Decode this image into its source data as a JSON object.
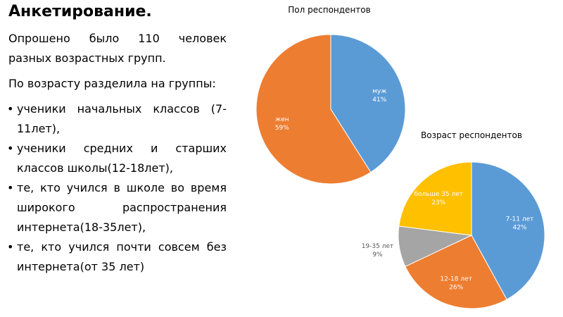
{
  "title": "Анкетирование.",
  "paragraphs": [
    "Опрошено было 110 человек разных возрастных групп.",
    "По возрасту разделила на группы:"
  ],
  "bullets": [
    "ученики начальных классов (7-11лет),",
    "ученики средних и старших классов школы(12-18лет),",
    "те, кто учился в школе во время широкого распространения интернета(18-35лет),",
    "те, кто учился почти совсем без интернета(от 35 лет)"
  ],
  "chart_data": [
    {
      "type": "pie",
      "title": "Пол респондентов",
      "categories": [
        "муж",
        "жен"
      ],
      "values": [
        41,
        59
      ],
      "value_labels": [
        "41%",
        "59%"
      ],
      "colors": [
        "#5b9bd5",
        "#ed7d31"
      ]
    },
    {
      "type": "pie",
      "title": "Возраст респондентов",
      "categories": [
        "7-11 лет",
        "12-18 лет",
        "19-35 лет",
        "больше 35 лет"
      ],
      "values": [
        42,
        26,
        9,
        23
      ],
      "value_labels": [
        "42%",
        "26%",
        "9%",
        "23%"
      ],
      "colors": [
        "#5b9bd5",
        "#ed7d31",
        "#a5a5a5",
        "#ffc000"
      ]
    }
  ]
}
